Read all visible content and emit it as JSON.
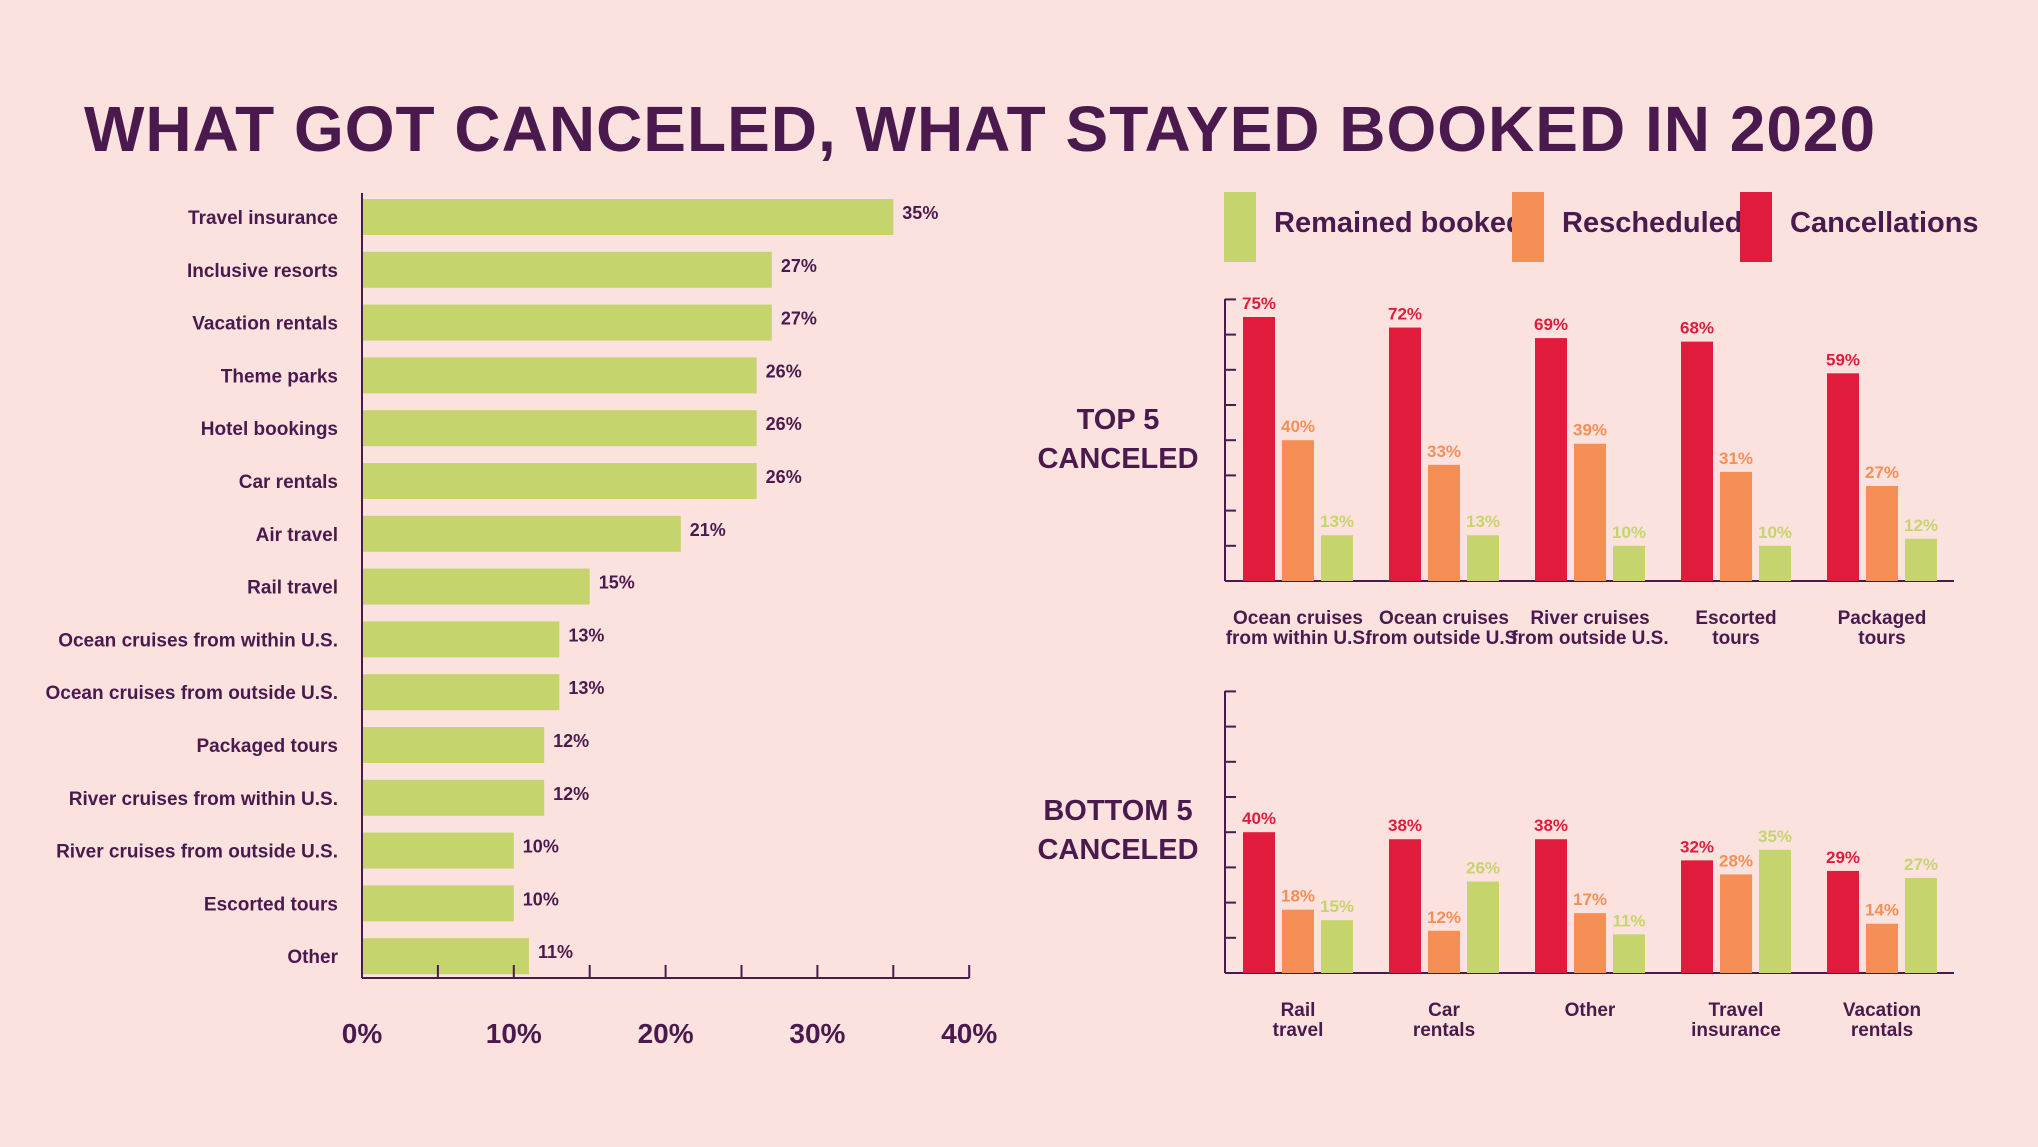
{
  "title": "WHAT GOT CANCELED, WHAT STAYED BOOKED IN 2020",
  "colors": {
    "background": "#fce2de",
    "text": "#4a1a4e",
    "remained": "#c6d46e",
    "rescheduled": "#f58f55",
    "cancellations": "#e01b3c"
  },
  "chart_data": [
    {
      "type": "bar",
      "orientation": "horizontal",
      "categories": [
        "Travel insurance",
        "Inclusive resorts",
        "Vacation rentals",
        "Theme parks",
        "Hotel bookings",
        "Car rentals",
        "Air travel",
        "Rail travel",
        "Ocean cruises from within U.S.",
        "Ocean cruises from outside U.S.",
        "Packaged tours",
        "River cruises from within U.S.",
        "River cruises from outside U.S.",
        "Escorted tours",
        "Other"
      ],
      "values": [
        35,
        27,
        27,
        26,
        26,
        26,
        21,
        15,
        13,
        13,
        12,
        12,
        10,
        10,
        11
      ],
      "value_labels": [
        "35%",
        "27%",
        "27%",
        "26%",
        "26%",
        "26%",
        "21%",
        "15%",
        "13%",
        "13%",
        "12%",
        "12%",
        "10%",
        "10%",
        "11%"
      ],
      "xlim": [
        0,
        40
      ],
      "xticks": [
        0,
        10,
        20,
        30,
        40
      ],
      "xtick_labels": [
        "0%",
        "10%",
        "20%",
        "30%",
        "40%"
      ],
      "color": "#c6d46e"
    },
    {
      "type": "bar",
      "label_lines": [
        "TOP 5",
        "CANCELED"
      ],
      "categories": [
        [
          "Ocean cruises",
          "from within U.S."
        ],
        [
          "Ocean cruises",
          "from outside U.S."
        ],
        [
          "River cruises",
          "from outside U.S."
        ],
        [
          "Escorted",
          "tours"
        ],
        [
          "Packaged",
          "tours"
        ]
      ],
      "series": [
        {
          "name": "Cancellations",
          "values": [
            75,
            72,
            69,
            68,
            59
          ],
          "labels": [
            "75%",
            "72%",
            "69%",
            "68%",
            "59%"
          ]
        },
        {
          "name": "Rescheduled",
          "values": [
            40,
            33,
            39,
            31,
            27
          ],
          "labels": [
            "40%",
            "33%",
            "39%",
            "31%",
            "27%"
          ]
        },
        {
          "name": "Remained booked",
          "values": [
            13,
            13,
            10,
            10,
            12
          ],
          "labels": [
            "13%",
            "13%",
            "10%",
            "10%",
            "12%"
          ]
        }
      ],
      "ylim": [
        0,
        80
      ]
    },
    {
      "type": "bar",
      "label_lines": [
        "BOTTOM 5",
        "CANCELED"
      ],
      "categories": [
        [
          "Rail",
          "travel"
        ],
        [
          "Car",
          "rentals"
        ],
        [
          "Other"
        ],
        [
          "Travel",
          "insurance"
        ],
        [
          "Vacation",
          "rentals"
        ]
      ],
      "series": [
        {
          "name": "Cancellations",
          "values": [
            40,
            38,
            38,
            32,
            29
          ],
          "labels": [
            "40%",
            "38%",
            "38%",
            "32%",
            "29%"
          ]
        },
        {
          "name": "Rescheduled",
          "values": [
            18,
            12,
            17,
            28,
            14
          ],
          "labels": [
            "18%",
            "12%",
            "17%",
            "28%",
            "14%"
          ]
        },
        {
          "name": "Remained booked",
          "values": [
            15,
            26,
            11,
            35,
            27
          ],
          "labels": [
            "15%",
            "26%",
            "11%",
            "35%",
            "27%"
          ]
        }
      ],
      "ylim": [
        0,
        80
      ]
    }
  ],
  "legend": [
    {
      "label": "Remained booked",
      "color": "#c6d46e"
    },
    {
      "label": "Rescheduled",
      "color": "#f58f55"
    },
    {
      "label": "Cancellations",
      "color": "#e01b3c"
    }
  ]
}
